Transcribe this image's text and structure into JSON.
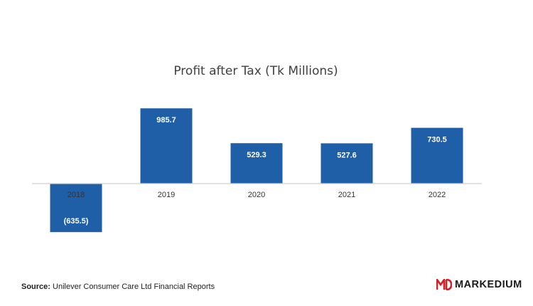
{
  "chart_data": {
    "type": "bar",
    "title": "Profit after Tax (Tk Millions)",
    "categories": [
      "2018",
      "2019",
      "2020",
      "2021",
      "2022"
    ],
    "values": [
      -635.5,
      985.7,
      529.3,
      527.6,
      730.5
    ],
    "data_labels": [
      "(635.5)",
      "985.7",
      "529.3",
      "527.6",
      "730.5"
    ],
    "ylim": [
      -635.5,
      985.7
    ],
    "grid": false,
    "legend": "none",
    "bar_color": "#1f5fa8",
    "label_color": "#ffffff",
    "axis_color": "#d0d0d0",
    "tick_label_color": "#333333"
  },
  "source": {
    "label": "Source:",
    "text": "Unilever Consumer Care Ltd Financial Reports"
  },
  "logo": {
    "text": "MARKEDIUM",
    "mark_icon": "md-logo-icon",
    "accent_color": "#d32027"
  }
}
